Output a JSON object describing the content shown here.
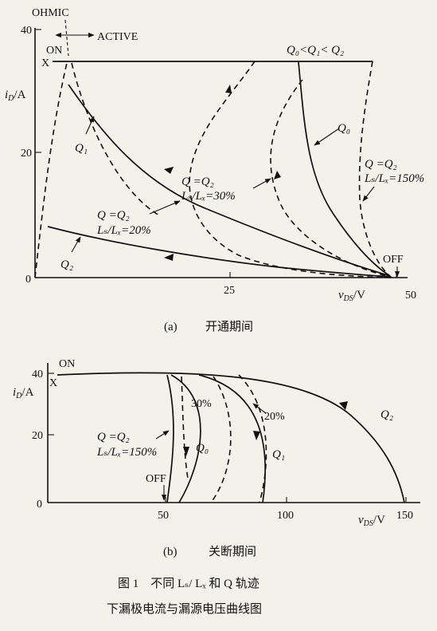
{
  "panel_a": {
    "ohmic": "OHMIC",
    "active": "ACTIVE",
    "on": "ON",
    "x": "X",
    "off": "OFF",
    "y_label_i": "i",
    "y_label_sub": "D",
    "y_label_unit": "/A",
    "x_label_v": "v",
    "x_label_sub": "DS",
    "x_label_unit": "/V",
    "y_ticks": [
      "40",
      "20",
      "0"
    ],
    "x_ticks": [
      "25",
      "50"
    ],
    "ann_q_order": "Q₀<Q₁< Q₂",
    "ann_q0": "Q₀",
    "ann_q1": "Q₁",
    "ann_q2": "Q₂",
    "ann_30_q": "Q =Q₂",
    "ann_30_l": "Lₛ/Lₓ=30%",
    "ann_20_q": "Q =Q₂",
    "ann_20_l": "Lₛ/Lₓ=20%",
    "ann_150_q": "Q =Q₂",
    "ann_150_l": "Lₛ/Lₓ=150%",
    "caption_label": "(a)",
    "caption_text": "开通期间"
  },
  "panel_b": {
    "on": "ON",
    "x": "X",
    "off": "OFF",
    "y_label_i": "i",
    "y_label_sub": "D",
    "y_label_unit": "/A",
    "x_label_v": "v",
    "x_label_sub": "DS",
    "x_label_unit": "/V",
    "y_ticks": [
      "40",
      "20",
      "0"
    ],
    "x_ticks": [
      "50",
      "100",
      "150"
    ],
    "ann_30": "30%",
    "ann_20": "20%",
    "ann_q0": "Q₀",
    "ann_q1": "Q₁",
    "ann_q2": "Q₂",
    "ann_150_q": "Q =Q₂",
    "ann_150_l": "Lₛ/Lₓ=150%",
    "caption_label": "(b)",
    "caption_text": "关断期间"
  },
  "figure_caption": {
    "line1": "图 1　不同 Lₛ/ Lₓ 和 Q 轨迹",
    "line2": "下漏极电流与漏源电压曲线图"
  }
}
